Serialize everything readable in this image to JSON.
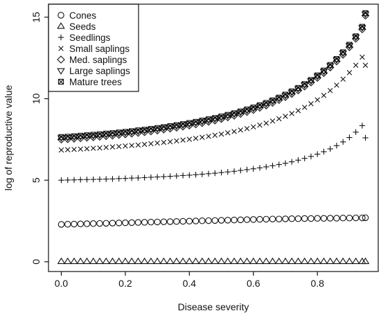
{
  "chart_data": {
    "type": "scatter",
    "xlabel": "Disease severity",
    "ylabel": "log of reproductive value",
    "xlim": [
      -0.04,
      0.99
    ],
    "ylim": [
      -0.6,
      15.8
    ],
    "xticks": [
      0.0,
      0.2,
      0.4,
      0.6,
      0.8
    ],
    "xtick_labels": [
      "0.0",
      "0.2",
      "0.4",
      "0.6",
      "0.8"
    ],
    "yticks": [
      0,
      5,
      10,
      15
    ],
    "ytick_labels": [
      "0",
      "5",
      "10",
      "15"
    ],
    "grid": false,
    "legend_position": "top-left",
    "x": [
      0.0,
      0.02,
      0.04,
      0.06,
      0.08,
      0.1,
      0.12,
      0.14,
      0.16,
      0.18,
      0.2,
      0.22,
      0.24,
      0.26,
      0.28,
      0.3,
      0.32,
      0.34,
      0.36,
      0.38,
      0.4,
      0.42,
      0.44,
      0.46,
      0.48,
      0.5,
      0.52,
      0.54,
      0.56,
      0.58,
      0.6,
      0.62,
      0.64,
      0.66,
      0.68,
      0.7,
      0.72,
      0.74,
      0.76,
      0.78,
      0.8,
      0.82,
      0.84,
      0.86,
      0.88,
      0.9,
      0.92,
      0.94,
      0.95
    ],
    "series": [
      {
        "name": "Cones",
        "marker": "circle",
        "values": [
          2.29,
          2.3,
          2.31,
          2.32,
          2.33,
          2.34,
          2.35,
          2.36,
          2.37,
          2.38,
          2.39,
          2.4,
          2.41,
          2.42,
          2.43,
          2.44,
          2.45,
          2.46,
          2.47,
          2.48,
          2.49,
          2.5,
          2.51,
          2.52,
          2.53,
          2.54,
          2.55,
          2.56,
          2.57,
          2.58,
          2.59,
          2.6,
          2.61,
          2.62,
          2.62,
          2.63,
          2.64,
          2.64,
          2.65,
          2.65,
          2.66,
          2.66,
          2.67,
          2.67,
          2.68,
          2.68,
          2.69,
          2.69,
          2.7
        ]
      },
      {
        "name": "Seeds",
        "marker": "triangle-up",
        "values": [
          0.01,
          0.01,
          0.01,
          0.01,
          0.01,
          0.01,
          0.01,
          0.01,
          0.01,
          0.01,
          0.01,
          0.01,
          0.01,
          0.01,
          0.01,
          0.01,
          0.01,
          0.01,
          0.01,
          0.01,
          0.01,
          0.01,
          0.01,
          0.01,
          0.01,
          0.01,
          0.01,
          0.01,
          0.01,
          0.01,
          0.01,
          0.01,
          0.01,
          0.01,
          0.01,
          0.01,
          0.01,
          0.01,
          0.01,
          0.01,
          0.01,
          0.01,
          0.01,
          0.01,
          0.01,
          0.01,
          0.01,
          0.01,
          0.01
        ]
      },
      {
        "name": "Seedlings",
        "marker": "plus",
        "values": [
          5.0,
          5.01,
          5.02,
          5.03,
          5.04,
          5.05,
          5.06,
          5.07,
          5.08,
          5.1,
          5.11,
          5.13,
          5.14,
          5.16,
          5.18,
          5.2,
          5.22,
          5.24,
          5.26,
          5.29,
          5.31,
          5.34,
          5.37,
          5.4,
          5.43,
          5.47,
          5.51,
          5.55,
          5.6,
          5.65,
          5.7,
          5.76,
          5.82,
          5.89,
          5.96,
          6.04,
          6.13,
          6.23,
          6.34,
          6.46,
          6.6,
          6.75,
          6.92,
          7.12,
          7.35,
          7.62,
          7.95,
          8.35,
          7.6
        ]
      },
      {
        "name": "Small saplings",
        "marker": "cross",
        "values": [
          6.85,
          6.87,
          6.89,
          6.91,
          6.93,
          6.96,
          6.98,
          7.01,
          7.04,
          7.07,
          7.1,
          7.13,
          7.16,
          7.2,
          7.24,
          7.28,
          7.32,
          7.36,
          7.41,
          7.46,
          7.51,
          7.57,
          7.63,
          7.69,
          7.76,
          7.83,
          7.91,
          7.99,
          8.08,
          8.17,
          8.27,
          8.38,
          8.5,
          8.63,
          8.77,
          8.92,
          9.09,
          9.27,
          9.47,
          9.69,
          9.93,
          10.2,
          10.5,
          10.83,
          11.2,
          11.6,
          12.05,
          12.55,
          12.05
        ]
      },
      {
        "name": "Med. saplings",
        "marker": "diamond",
        "values": [
          7.5,
          7.52,
          7.55,
          7.58,
          7.61,
          7.64,
          7.67,
          7.71,
          7.74,
          7.78,
          7.82,
          7.86,
          7.91,
          7.95,
          8.0,
          8.05,
          8.11,
          8.17,
          8.23,
          8.29,
          8.36,
          8.43,
          8.51,
          8.59,
          8.67,
          8.76,
          8.86,
          8.96,
          9.07,
          9.19,
          9.31,
          9.45,
          9.59,
          9.75,
          9.92,
          10.1,
          10.3,
          10.51,
          10.75,
          11.0,
          11.28,
          11.58,
          11.92,
          12.29,
          12.7,
          13.16,
          13.68,
          14.26,
          15.1
        ]
      },
      {
        "name": "Large saplings",
        "marker": "triangle-down",
        "values": [
          7.6,
          7.62,
          7.65,
          7.68,
          7.71,
          7.74,
          7.77,
          7.81,
          7.84,
          7.88,
          7.92,
          7.96,
          8.01,
          8.05,
          8.1,
          8.15,
          8.21,
          8.27,
          8.33,
          8.39,
          8.46,
          8.53,
          8.61,
          8.69,
          8.77,
          8.86,
          8.96,
          9.06,
          9.17,
          9.29,
          9.41,
          9.55,
          9.69,
          9.85,
          10.02,
          10.2,
          10.4,
          10.61,
          10.85,
          11.1,
          11.38,
          11.68,
          12.02,
          12.39,
          12.8,
          13.26,
          13.78,
          14.36,
          15.2
        ]
      },
      {
        "name": "Mature trees",
        "marker": "boxed-x",
        "values": [
          7.65,
          7.67,
          7.7,
          7.73,
          7.76,
          7.79,
          7.82,
          7.86,
          7.89,
          7.93,
          7.97,
          8.01,
          8.06,
          8.1,
          8.15,
          8.2,
          8.26,
          8.32,
          8.38,
          8.44,
          8.51,
          8.58,
          8.66,
          8.74,
          8.82,
          8.91,
          9.01,
          9.11,
          9.22,
          9.34,
          9.46,
          9.6,
          9.74,
          9.9,
          10.07,
          10.25,
          10.45,
          10.66,
          10.9,
          11.15,
          11.43,
          11.73,
          12.07,
          12.44,
          12.85,
          13.31,
          13.83,
          14.41,
          15.25
        ]
      }
    ]
  }
}
